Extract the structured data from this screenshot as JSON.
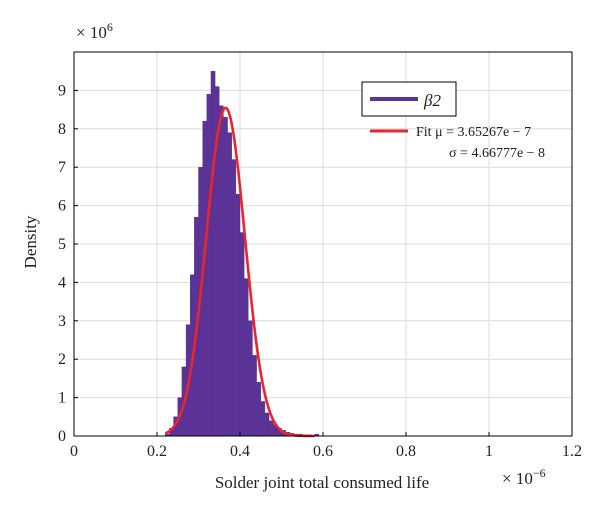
{
  "chart_data": {
    "type": "histogram",
    "xlabel": "Solder joint total consumed life",
    "ylabel": "Density",
    "x_exponent": {
      "base": "× 10",
      "power": "−6"
    },
    "y_exponent": {
      "base": "× 10",
      "power": "6"
    },
    "xlim": [
      0,
      1.2
    ],
    "ylim": [
      0,
      10
    ],
    "xticks": [
      0,
      0.2,
      0.4,
      0.6,
      0.8,
      1,
      1.2
    ],
    "xtick_labels": [
      "0",
      "0.2",
      "0.4",
      "0.6",
      "0.8",
      "1",
      "1.2"
    ],
    "yticks": [
      0,
      1,
      2,
      3,
      4,
      5,
      6,
      7,
      8,
      9
    ],
    "ytick_labels": [
      "0",
      "1",
      "2",
      "3",
      "4",
      "5",
      "6",
      "7",
      "8",
      "9"
    ],
    "grid": true,
    "legend_position": "top-right",
    "series": [
      {
        "name": "β2",
        "kind": "histogram",
        "color": "#5b3296",
        "bin_width": 0.01,
        "bin_starts": [
          0.22,
          0.23,
          0.24,
          0.25,
          0.26,
          0.27,
          0.28,
          0.29,
          0.3,
          0.31,
          0.32,
          0.33,
          0.34,
          0.35,
          0.36,
          0.37,
          0.38,
          0.39,
          0.4,
          0.41,
          0.42,
          0.43,
          0.44,
          0.45,
          0.46,
          0.47,
          0.48,
          0.49,
          0.5,
          0.51,
          0.52,
          0.53,
          0.54,
          0.55,
          0.56,
          0.57,
          0.58
        ],
        "values": [
          0.05,
          0.2,
          0.5,
          1.0,
          1.8,
          2.9,
          4.2,
          5.7,
          7.0,
          8.2,
          8.9,
          9.5,
          9.1,
          8.6,
          8.3,
          7.9,
          7.2,
          6.3,
          5.3,
          4.1,
          3.0,
          2.1,
          1.4,
          0.9,
          0.6,
          0.4,
          0.3,
          0.2,
          0.15,
          0.1,
          0.07,
          0.05,
          0.05,
          0.03,
          0.03,
          0.02,
          0.05
        ]
      },
      {
        "name": "Fit μ = 3.65267e − 7",
        "name_line2": "σ = 4.66777e − 8",
        "kind": "normal_fit",
        "color": "#e8262c",
        "mu": 0.365267,
        "sigma": 0.0466777,
        "x_range": [
          0.22,
          0.58
        ]
      }
    ]
  }
}
